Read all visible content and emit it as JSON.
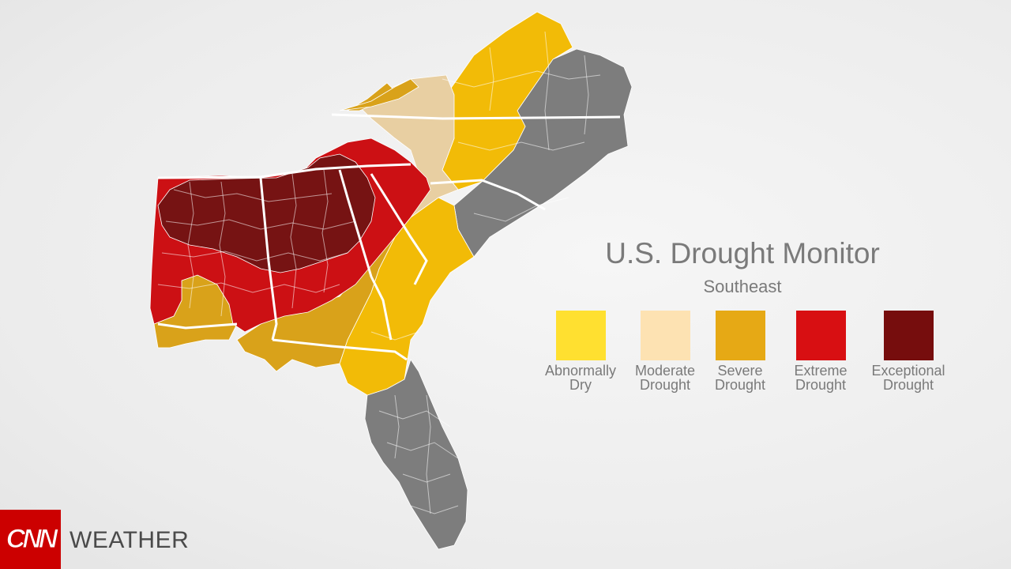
{
  "map": {
    "title": "U.S. Drought Monitor",
    "subtitle": "Southeast",
    "region_colors": {
      "none": "#7d7d7d",
      "abnormally_dry": "#f2bb07",
      "moderate": "#e8cfa2",
      "severe": "#d9a21a",
      "extreme": "#cc1014",
      "exceptional": "#761313"
    }
  },
  "legend": {
    "items": [
      {
        "label": "Abnormally\nDry",
        "color": "#ffe030"
      },
      {
        "label": "Moderate\nDrought",
        "color": "#fde2b2"
      },
      {
        "label": "Severe\nDrought",
        "color": "#e6a915"
      },
      {
        "label": "Extreme\nDrought",
        "color": "#d80f12"
      },
      {
        "label": "Exceptional\nDrought",
        "color": "#760d0d"
      }
    ]
  },
  "branding": {
    "logo_text": "CNN",
    "section": "WEATHER",
    "logo_color": "#cc0000"
  }
}
